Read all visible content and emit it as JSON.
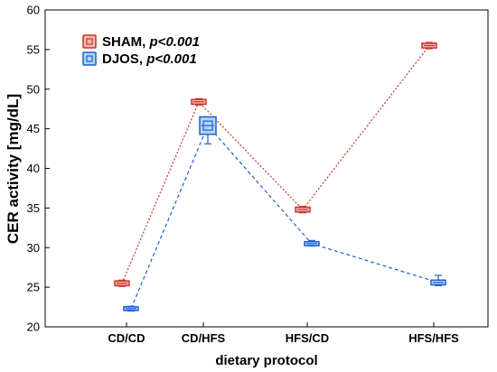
{
  "chart_data": {
    "type": "line",
    "xlabel": "dietary protocol",
    "ylabel": "CER activity [mg/dL]",
    "ylim": [
      20,
      60
    ],
    "yticks": [
      20,
      25,
      30,
      35,
      40,
      45,
      50,
      55,
      60
    ],
    "categories": [
      "CD/CD",
      "CD/HFS",
      "HFS/CD",
      "HFS/HFS"
    ],
    "legend_position": "top-left",
    "grid": false,
    "series": [
      {
        "name": "SHAM",
        "stat": "p<0.001",
        "color": "#c0392b",
        "marker_fill": "#f5b7b1",
        "values": [
          25.5,
          48.4,
          34.8,
          55.5
        ],
        "box_low": [
          25.2,
          48.1,
          34.5,
          55.2
        ],
        "box_high": [
          25.8,
          48.7,
          35.1,
          55.8
        ],
        "whisker_low": [
          25.1,
          48.0,
          34.4,
          55.1
        ],
        "whisker_high": [
          25.9,
          48.8,
          35.2,
          55.9
        ]
      },
      {
        "name": "DJOS",
        "stat": "p<0.001",
        "color": "#1f5fd1",
        "marker_fill": "#aed6f1",
        "values": [
          22.3,
          45.4,
          30.5,
          25.6
        ],
        "box_low": [
          22.1,
          44.2,
          30.3,
          25.3
        ],
        "box_high": [
          22.5,
          46.4,
          30.8,
          25.9
        ],
        "whisker_low": [
          22.0,
          43.1,
          30.2,
          25.2
        ],
        "whisker_high": [
          22.6,
          46.5,
          30.9,
          26.5
        ]
      }
    ]
  }
}
